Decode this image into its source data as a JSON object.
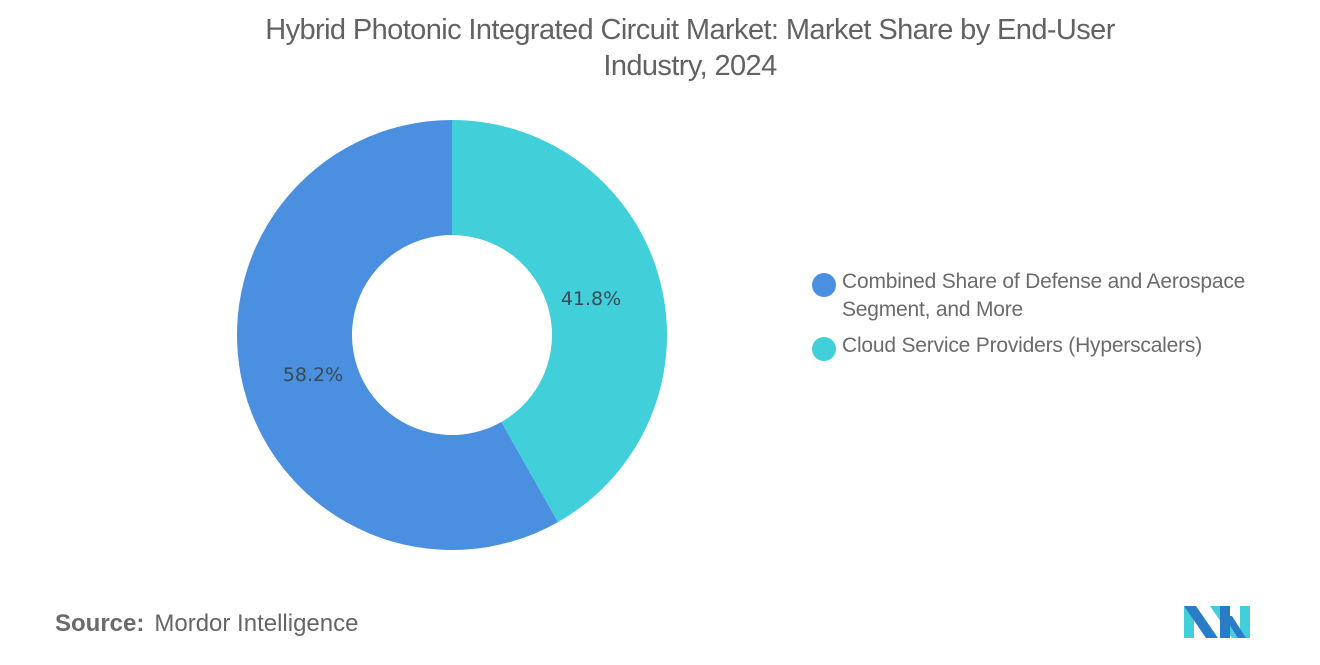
{
  "title": "Hybrid Photonic Integrated Circuit Market: Market Share by End-User Industry, 2024",
  "title_lines": [
    "Hybrid Photonic Integrated Circuit Market: Market Share by End-User",
    "Industry, 2024"
  ],
  "legend": [
    {
      "label": "Combined Share of Defense and Aerospace Segment, and More",
      "color": "#4a8fe0"
    },
    {
      "label": "Cloud Service Providers (Hyperscalers)",
      "color": "#41cfd9"
    }
  ],
  "slice_labels": {
    "first": "58.2%",
    "second": "41.8%"
  },
  "source": {
    "label": "Source:",
    "value": "Mordor Intelligence"
  },
  "logo": {
    "name": "mordor-intelligence-logo",
    "colors": [
      "#2a7cc7",
      "#41cfd9"
    ]
  },
  "chart_data": {
    "type": "pie",
    "variant": "donut",
    "title": "Hybrid Photonic Integrated Circuit Market: Market Share by End-User Industry, 2024",
    "categories": [
      "Combined Share of Defense and Aerospace Segment, and More",
      "Cloud Service Providers (Hyperscalers)"
    ],
    "values": [
      58.2,
      41.8
    ],
    "unit": "%",
    "colors": [
      "#4a8fe0",
      "#41cfd9"
    ],
    "legend_position": "right",
    "start_angle": "12 o'clock, clockwise (Cloud Service Providers first)"
  }
}
